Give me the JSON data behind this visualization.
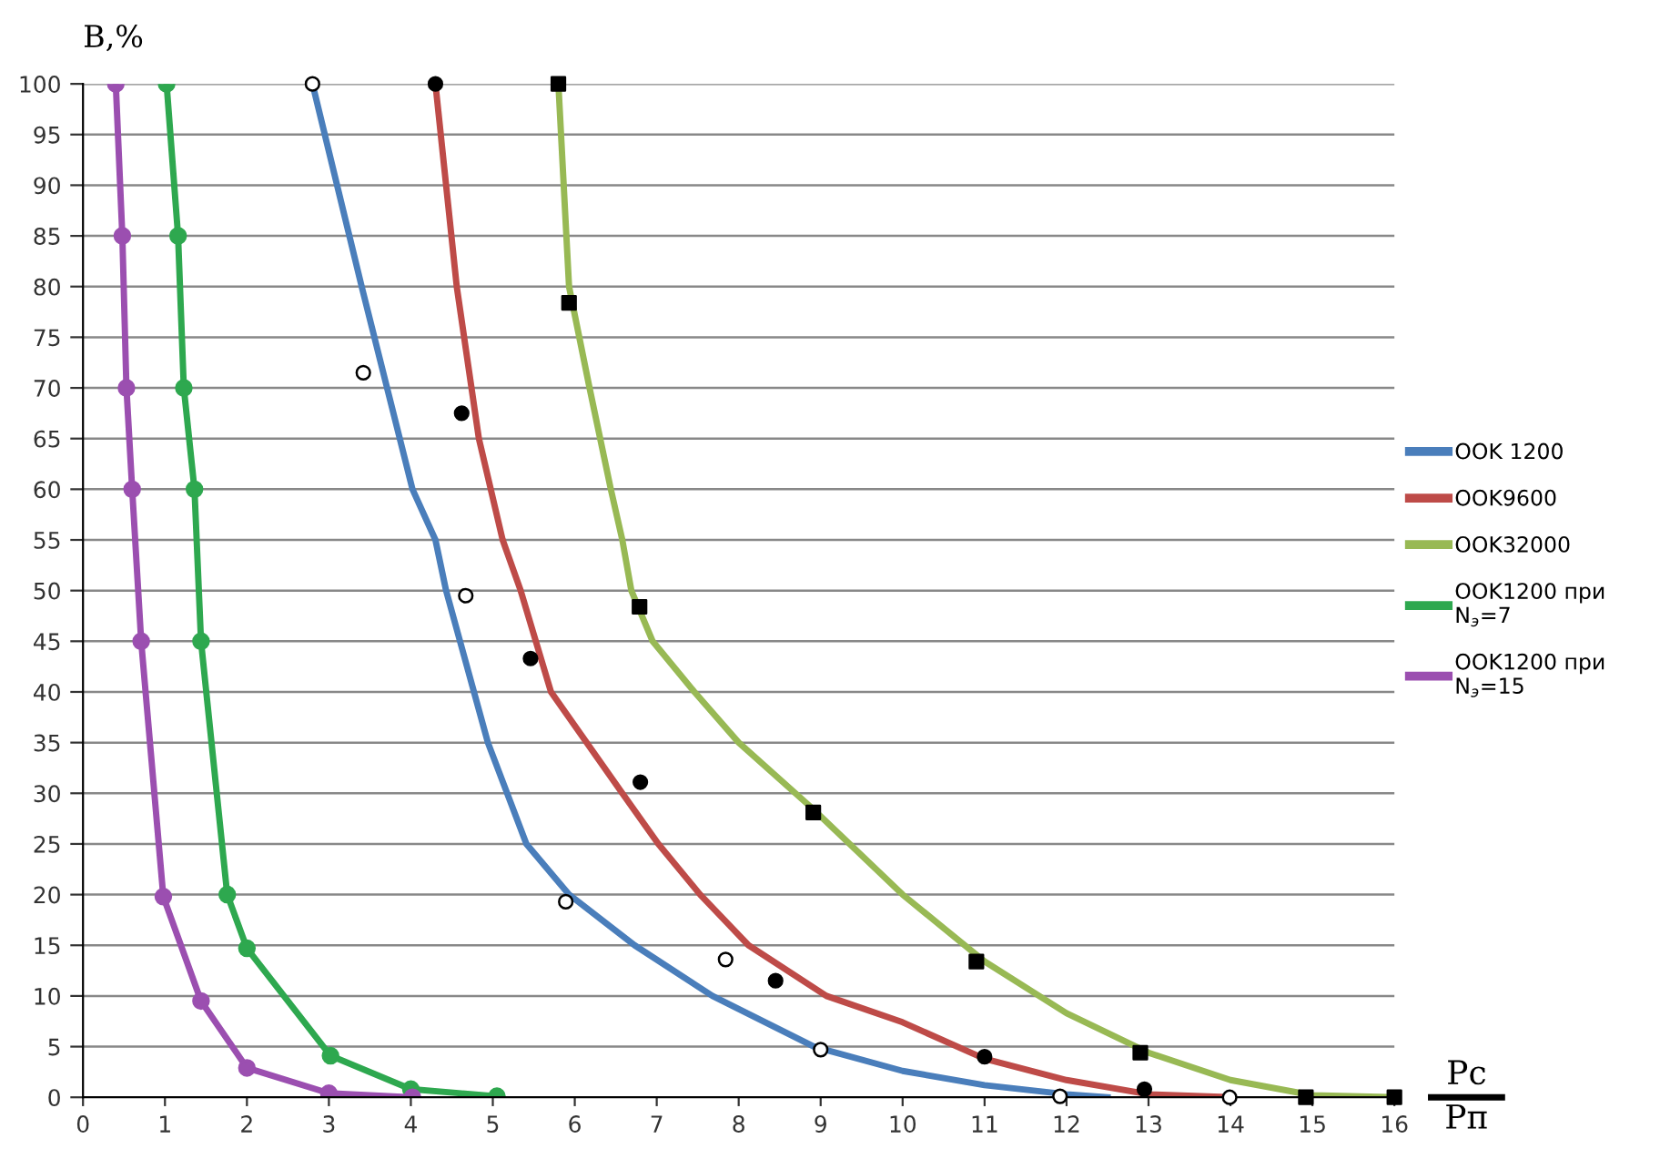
{
  "chart_data": {
    "type": "line",
    "ylabel": "B,%",
    "xlabel": "Pc\nPп",
    "xlim": [
      0,
      16
    ],
    "ylim": [
      0,
      100
    ],
    "xticks": [
      0,
      1,
      2,
      3,
      4,
      5,
      6,
      7,
      8,
      9,
      10,
      11,
      12,
      13,
      14,
      15,
      16
    ],
    "yticks": [
      0,
      5,
      10,
      15,
      20,
      25,
      30,
      35,
      40,
      45,
      50,
      55,
      60,
      65,
      70,
      75,
      80,
      85,
      90,
      95,
      100
    ],
    "grid": "y",
    "legend": "right",
    "series": [
      {
        "name": "OOK 1200",
        "color": "#4a7ebb",
        "marker": "none",
        "x": [
          2.8,
          3.4,
          4.02,
          4.3,
          4.43,
          4.94,
          5.41,
          5.93,
          6.73,
          7.68,
          8.92,
          10,
          11,
          12,
          12.5
        ],
        "values": [
          100,
          80,
          60,
          55,
          50,
          35,
          25,
          20,
          15,
          10,
          5,
          2.6,
          1.2,
          0.3,
          0
        ]
      },
      {
        "name": "OOK9600",
        "color": "#be4b48",
        "marker": "none",
        "x": [
          4.3,
          4.56,
          4.83,
          5.12,
          5.34,
          5.71,
          6.58,
          7.02,
          7.53,
          8.12,
          9.07,
          10,
          11,
          12,
          13,
          14
        ],
        "values": [
          100,
          80,
          65,
          55,
          50,
          40,
          30,
          25,
          20,
          15,
          10,
          7.4,
          3.8,
          1.7,
          0.3,
          0
        ]
      },
      {
        "name": "OOK32000",
        "color": "#98b954",
        "marker": "none",
        "x": [
          5.8,
          5.93,
          6.18,
          6.44,
          6.58,
          6.69,
          6.95,
          7.46,
          8.0,
          8.9,
          10,
          11,
          12,
          13,
          14,
          15,
          16
        ],
        "values": [
          100,
          80,
          70,
          60,
          55,
          50,
          45,
          40,
          35,
          28.5,
          20,
          13.4,
          8.3,
          4.4,
          1.7,
          0.2,
          0
        ]
      },
      {
        "name": "OOK1200 при\nN$_{э}$=7",
        "color": "#2ea84f",
        "marker": "circle",
        "x": [
          1.02,
          1.16,
          1.23,
          1.36,
          1.44,
          1.76,
          2.0,
          3.02,
          4.0,
          5.05
        ],
        "values": [
          100,
          85,
          70,
          60,
          45,
          20,
          14.7,
          4.1,
          0.8,
          0.1
        ]
      },
      {
        "name": "OOK1200 при\nN$_{э}$=15",
        "color": "#9b4fb0",
        "marker": "circle",
        "x": [
          0.4,
          0.48,
          0.53,
          0.6,
          0.71,
          0.98,
          1.44,
          2.0,
          3.0,
          4.02
        ],
        "values": [
          100,
          85,
          70,
          60,
          45,
          19.8,
          9.5,
          2.9,
          0.4,
          0
        ]
      },
      {
        "type": "scatter",
        "color": "#ffffff",
        "marker": "circle",
        "x": [
          2.8,
          3.42,
          4.67,
          5.89,
          7.84,
          9.0,
          11.92,
          13.99
        ],
        "values": [
          100,
          71.5,
          49.5,
          19.3,
          13.6,
          4.7,
          0.1,
          0
        ]
      },
      {
        "type": "scatter",
        "color": "#000000",
        "marker": "circle",
        "x": [
          4.3,
          4.62,
          5.46,
          6.8,
          8.45,
          11.0,
          12.95
        ],
        "values": [
          100,
          67.5,
          43.3,
          31.1,
          11.5,
          4.0,
          0.8
        ]
      },
      {
        "type": "scatter",
        "color": "#000000",
        "marker": "square",
        "x": [
          5.8,
          5.93,
          6.79,
          8.91,
          10.9,
          12.9,
          14.92,
          16.0
        ],
        "values": [
          100,
          78.4,
          48.4,
          28.1,
          13.4,
          4.4,
          0,
          0
        ]
      }
    ]
  }
}
